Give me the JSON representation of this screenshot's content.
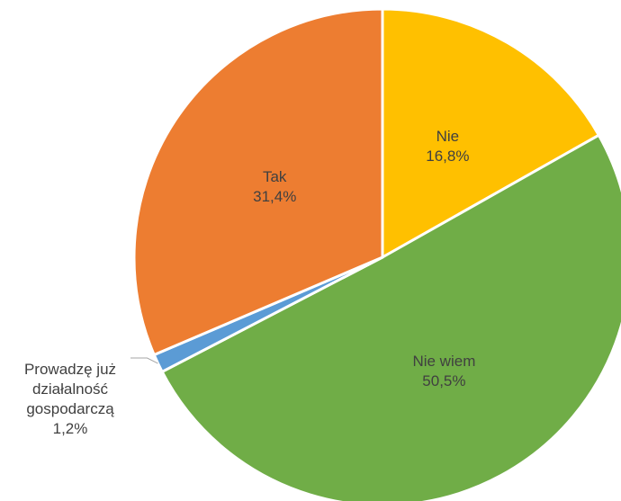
{
  "chart_data": {
    "type": "pie",
    "title": "",
    "slices": [
      {
        "label": "Nie",
        "value": 16.8,
        "display": "16,8%",
        "color": "#FFC000"
      },
      {
        "label": "Nie wiem",
        "value": 50.5,
        "display": "50,5%",
        "color": "#70AD47"
      },
      {
        "label": "Prowadzę już działalność gospodarczą",
        "label_lines": [
          "Prowadzę już",
          "działalność",
          "gospodarczą"
        ],
        "value": 1.2,
        "display": "1,2%",
        "color": "#5B9BD5"
      },
      {
        "label": "Tak",
        "value": 31.4,
        "display": "31,4%",
        "color": "#ED7D31"
      }
    ],
    "start": "12 o'clock",
    "direction": "clockwise",
    "legend": "none"
  }
}
